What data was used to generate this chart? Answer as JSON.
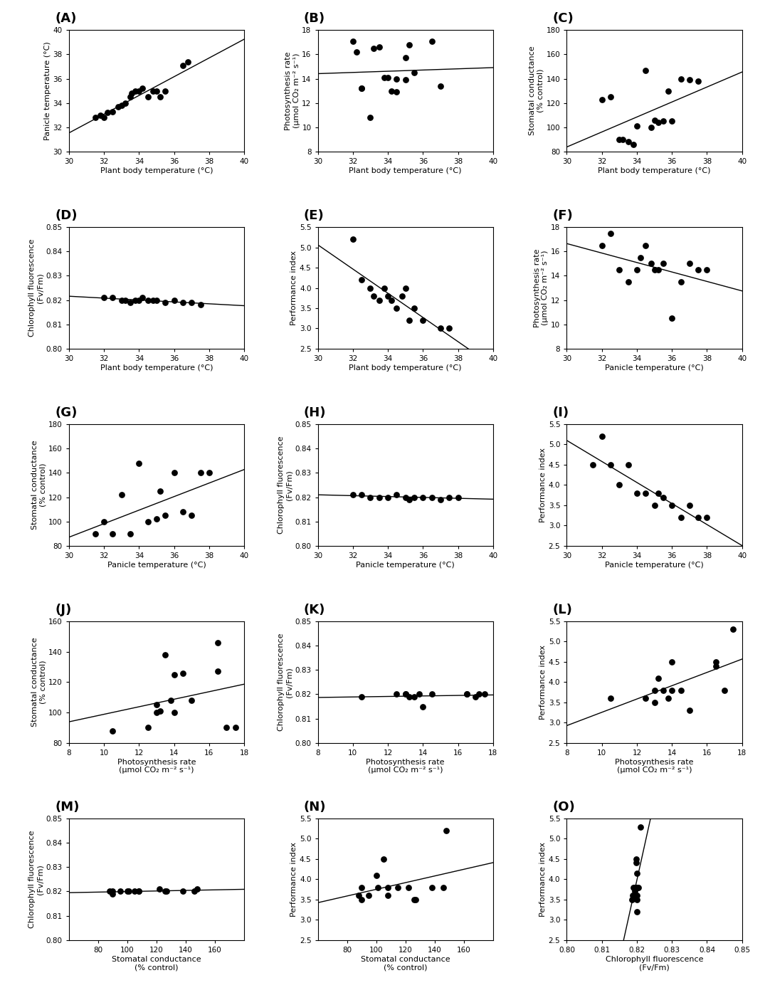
{
  "panels": [
    {
      "label": "(A)",
      "xlabel": "Plant body temperature (°C)",
      "ylabel": "Panicle temperature (°C)",
      "xlim": [
        30,
        40
      ],
      "ylim": [
        30,
        40
      ],
      "xticks": [
        30,
        32,
        34,
        36,
        38,
        40
      ],
      "yticks": [
        30,
        32,
        34,
        36,
        38,
        40
      ],
      "x": [
        31.5,
        31.8,
        32.0,
        32.2,
        32.5,
        32.8,
        33.0,
        33.2,
        33.5,
        33.6,
        33.8,
        34.0,
        34.2,
        34.5,
        34.8,
        35.0,
        35.2,
        35.5,
        36.5,
        36.8
      ],
      "y": [
        32.8,
        33.0,
        32.8,
        33.2,
        33.3,
        33.7,
        33.8,
        34.0,
        34.5,
        34.8,
        35.0,
        35.0,
        35.2,
        34.5,
        35.0,
        35.0,
        34.5,
        35.0,
        37.1,
        37.4
      ],
      "trend": true
    },
    {
      "label": "(B)",
      "xlabel": "Plant body temperature (°C)",
      "ylabel": "Photosynthesis rate\n(μmol CO₂ m⁻² s⁻¹)",
      "xlim": [
        30,
        40
      ],
      "ylim": [
        8,
        18
      ],
      "xticks": [
        30,
        32,
        34,
        36,
        38,
        40
      ],
      "yticks": [
        8,
        10,
        12,
        14,
        16,
        18
      ],
      "x": [
        32.0,
        32.2,
        32.5,
        32.5,
        33.0,
        33.2,
        33.5,
        33.8,
        34.0,
        34.2,
        34.5,
        34.5,
        35.0,
        35.0,
        35.2,
        35.5,
        36.5,
        37.0
      ],
      "y": [
        17.1,
        16.2,
        13.2,
        13.2,
        10.8,
        16.5,
        16.6,
        14.1,
        14.1,
        13.0,
        14.0,
        12.9,
        15.7,
        13.9,
        16.8,
        14.5,
        17.1,
        13.4
      ],
      "trend": true
    },
    {
      "label": "(C)",
      "xlabel": "Plant body temperature (°C)",
      "ylabel": "Stomatal conductance\n(% control)",
      "xlim": [
        30,
        40
      ],
      "ylim": [
        80,
        180
      ],
      "xticks": [
        30,
        32,
        34,
        36,
        38,
        40
      ],
      "yticks": [
        80,
        100,
        120,
        140,
        160,
        180
      ],
      "x": [
        32.0,
        32.5,
        33.0,
        33.2,
        33.5,
        33.8,
        34.0,
        34.5,
        34.8,
        35.0,
        35.2,
        35.5,
        35.8,
        36.0,
        36.5,
        37.0,
        37.5
      ],
      "y": [
        123,
        125,
        90,
        90,
        88,
        86,
        101,
        147,
        100,
        106,
        104,
        105,
        130,
        105,
        140,
        139,
        138
      ],
      "trend": true
    },
    {
      "label": "(D)",
      "xlabel": "Plant body temperature (°C)",
      "ylabel": "Chlorophyll fluorescence\n(Fv/Fm)",
      "xlim": [
        30,
        40
      ],
      "ylim": [
        0.8,
        0.85
      ],
      "xticks": [
        30,
        32,
        34,
        36,
        38,
        40
      ],
      "yticks": [
        0.8,
        0.81,
        0.82,
        0.83,
        0.84,
        0.85
      ],
      "x": [
        32.0,
        32.5,
        33.0,
        33.2,
        33.5,
        33.8,
        34.0,
        34.2,
        34.5,
        34.8,
        35.0,
        35.5,
        36.0,
        36.5,
        37.0,
        37.5
      ],
      "y": [
        0.821,
        0.821,
        0.82,
        0.82,
        0.819,
        0.82,
        0.82,
        0.821,
        0.82,
        0.82,
        0.82,
        0.819,
        0.82,
        0.819,
        0.819,
        0.818
      ],
      "trend": true
    },
    {
      "label": "(E)",
      "xlabel": "Plant body temperature (°C)",
      "ylabel": "Performance index",
      "xlim": [
        30,
        40
      ],
      "ylim": [
        2.5,
        5.5
      ],
      "xticks": [
        30,
        32,
        34,
        36,
        38,
        40
      ],
      "yticks": [
        2.5,
        3.0,
        3.5,
        4.0,
        4.5,
        5.0,
        5.5
      ],
      "x": [
        32.0,
        32.5,
        33.0,
        33.2,
        33.5,
        33.8,
        34.0,
        34.2,
        34.5,
        34.8,
        35.0,
        35.2,
        35.5,
        36.0,
        37.0,
        37.5
      ],
      "y": [
        5.2,
        4.2,
        4.0,
        3.8,
        3.7,
        4.0,
        3.8,
        3.7,
        3.5,
        3.8,
        4.0,
        3.2,
        3.5,
        3.2,
        3.0,
        3.0
      ],
      "trend": true
    },
    {
      "label": "(F)",
      "xlabel": "Panicle temperature (°C)",
      "ylabel": "Photosynthesis rate\n(μmol CO₂ m⁻² s⁻¹)",
      "xlim": [
        30,
        40
      ],
      "ylim": [
        8,
        18
      ],
      "xticks": [
        30,
        32,
        34,
        36,
        38,
        40
      ],
      "yticks": [
        8,
        10,
        12,
        14,
        16,
        18
      ],
      "x": [
        32.0,
        32.5,
        33.0,
        33.5,
        34.0,
        34.2,
        34.5,
        34.8,
        35.0,
        35.2,
        35.5,
        36.0,
        36.5,
        37.0,
        37.5,
        38.0
      ],
      "y": [
        16.5,
        17.5,
        14.5,
        13.5,
        14.5,
        15.5,
        16.5,
        15.0,
        14.5,
        14.5,
        15.0,
        10.5,
        13.5,
        15.0,
        14.5,
        14.5
      ],
      "trend": true
    },
    {
      "label": "(G)",
      "xlabel": "Panicle temperature (°C)",
      "ylabel": "Stomatal conductance\n(% control)",
      "xlim": [
        30,
        40
      ],
      "ylim": [
        80,
        180
      ],
      "xticks": [
        30,
        32,
        34,
        36,
        38,
        40
      ],
      "yticks": [
        80,
        100,
        120,
        140,
        160,
        180
      ],
      "x": [
        31.5,
        32.0,
        32.5,
        33.0,
        33.5,
        34.0,
        34.5,
        35.0,
        35.2,
        35.5,
        36.0,
        36.5,
        37.0,
        37.5,
        38.0
      ],
      "y": [
        90,
        100,
        90,
        122,
        90,
        148,
        100,
        102,
        125,
        105,
        140,
        108,
        105,
        140,
        140
      ],
      "trend": true
    },
    {
      "label": "(H)",
      "xlabel": "Panicle temperature (°C)",
      "ylabel": "Chlorophyll fluorescence\n(Fv/Fm)",
      "xlim": [
        30,
        40
      ],
      "ylim": [
        0.8,
        0.85
      ],
      "xticks": [
        30,
        32,
        34,
        36,
        38,
        40
      ],
      "yticks": [
        0.8,
        0.81,
        0.82,
        0.83,
        0.84,
        0.85
      ],
      "x": [
        32.0,
        32.5,
        33.0,
        33.5,
        34.0,
        34.5,
        35.0,
        35.2,
        35.5,
        36.0,
        36.5,
        37.0,
        37.5,
        38.0
      ],
      "y": [
        0.821,
        0.821,
        0.82,
        0.82,
        0.82,
        0.821,
        0.82,
        0.819,
        0.82,
        0.82,
        0.82,
        0.819,
        0.82,
        0.82
      ],
      "trend": true
    },
    {
      "label": "(I)",
      "xlabel": "Panicle temperature (°C)",
      "ylabel": "Performance index",
      "xlim": [
        30,
        40
      ],
      "ylim": [
        2.5,
        5.5
      ],
      "xticks": [
        30,
        32,
        34,
        36,
        38,
        40
      ],
      "yticks": [
        2.5,
        3.0,
        3.5,
        4.0,
        4.5,
        5.0,
        5.5
      ],
      "x": [
        31.5,
        32.0,
        32.5,
        33.0,
        33.5,
        34.0,
        34.5,
        35.0,
        35.2,
        35.5,
        36.0,
        36.5,
        37.0,
        37.5,
        38.0
      ],
      "y": [
        4.5,
        5.2,
        4.5,
        4.0,
        4.5,
        3.8,
        3.8,
        3.5,
        3.8,
        3.7,
        3.5,
        3.2,
        3.5,
        3.2,
        3.2
      ],
      "trend": true
    },
    {
      "label": "(J)",
      "xlabel": "Photosynthesis rate\n(μmol CO₂ m⁻² s⁻¹)",
      "ylabel": "Stomatal conductance\n(% control)",
      "xlim": [
        8,
        18
      ],
      "ylim": [
        80,
        160
      ],
      "xticks": [
        8,
        10,
        12,
        14,
        16,
        18
      ],
      "yticks": [
        80,
        100,
        120,
        140,
        160
      ],
      "x": [
        10.5,
        12.5,
        13.0,
        13.0,
        13.2,
        13.5,
        13.8,
        14.0,
        14.0,
        14.5,
        15.0,
        16.5,
        16.5,
        17.0,
        17.5
      ],
      "y": [
        88,
        90,
        100,
        105,
        101,
        138,
        108,
        100,
        125,
        126,
        108,
        127,
        146,
        90,
        90
      ],
      "trend": true
    },
    {
      "label": "(K)",
      "xlabel": "Photosynthesis rate\n(μmol CO₂ m⁻² s⁻¹)",
      "ylabel": "Chlorophyll fluorescence\n(Fv/Fm)",
      "xlim": [
        8,
        18
      ],
      "ylim": [
        0.8,
        0.85
      ],
      "xticks": [
        8,
        10,
        12,
        14,
        16,
        18
      ],
      "yticks": [
        0.8,
        0.81,
        0.82,
        0.83,
        0.84,
        0.85
      ],
      "x": [
        10.5,
        12.5,
        13.0,
        13.0,
        13.2,
        13.5,
        13.8,
        14.0,
        14.5,
        16.5,
        16.5,
        17.0,
        17.2,
        17.5
      ],
      "y": [
        0.819,
        0.82,
        0.82,
        0.82,
        0.819,
        0.819,
        0.82,
        0.815,
        0.82,
        0.82,
        0.82,
        0.819,
        0.82,
        0.82
      ],
      "trend": true
    },
    {
      "label": "(L)",
      "xlabel": "Photosynthesis rate\n(μmol CO₂ m⁻² s⁻¹)",
      "ylabel": "Performance index",
      "xlim": [
        8,
        18
      ],
      "ylim": [
        2.5,
        5.5
      ],
      "xticks": [
        8,
        10,
        12,
        14,
        16,
        18
      ],
      "yticks": [
        2.5,
        3.0,
        3.5,
        4.0,
        4.5,
        5.0,
        5.5
      ],
      "x": [
        10.5,
        12.5,
        13.0,
        13.0,
        13.2,
        13.5,
        13.8,
        14.0,
        14.0,
        14.5,
        15.0,
        16.5,
        16.5,
        17.0,
        17.5
      ],
      "y": [
        3.6,
        3.6,
        3.8,
        3.5,
        4.1,
        3.8,
        3.6,
        3.8,
        4.5,
        3.8,
        3.3,
        4.4,
        4.5,
        3.8,
        5.3
      ],
      "trend": true
    },
    {
      "label": "(M)",
      "xlabel": "Stomatal conductance\n(% control)",
      "ylabel": "Chlorophyll fluorescence\n(Fv/Fm)",
      "xlim": [
        60,
        180
      ],
      "ylim": [
        0.8,
        0.85
      ],
      "xticks": [
        80,
        100,
        120,
        140,
        160
      ],
      "yticks": [
        0.8,
        0.81,
        0.82,
        0.83,
        0.84,
        0.85
      ],
      "x": [
        88,
        90,
        90,
        95,
        100,
        101,
        105,
        108,
        108,
        122,
        126,
        127,
        138,
        146,
        148
      ],
      "y": [
        0.82,
        0.819,
        0.82,
        0.82,
        0.82,
        0.82,
        0.82,
        0.82,
        0.82,
        0.821,
        0.82,
        0.82,
        0.82,
        0.82,
        0.821
      ],
      "trend": true
    },
    {
      "label": "(N)",
      "xlabel": "Stomatal conductance\n(% control)",
      "ylabel": "Performance index",
      "xlim": [
        60,
        180
      ],
      "ylim": [
        2.5,
        5.5
      ],
      "xticks": [
        80,
        100,
        120,
        140,
        160
      ],
      "yticks": [
        2.5,
        3.0,
        3.5,
        4.0,
        4.5,
        5.0,
        5.5
      ],
      "x": [
        88,
        90,
        90,
        95,
        100,
        101,
        105,
        108,
        108,
        115,
        122,
        126,
        127,
        138,
        146,
        148
      ],
      "y": [
        3.6,
        3.8,
        3.5,
        3.6,
        4.1,
        3.8,
        4.5,
        3.8,
        3.6,
        3.8,
        3.8,
        3.5,
        3.5,
        3.8,
        3.8,
        5.2
      ],
      "trend": true
    },
    {
      "label": "(O)",
      "xlabel": "Chlorophyll fluorescence\n(Fv/Fm)",
      "ylabel": "Performance index",
      "xlim": [
        0.8,
        0.85
      ],
      "ylim": [
        2.5,
        5.5
      ],
      "xticks": [
        0.8,
        0.81,
        0.82,
        0.83,
        0.84,
        0.85
      ],
      "yticks": [
        2.5,
        3.0,
        3.5,
        4.0,
        4.5,
        5.0,
        5.5
      ],
      "x": [
        0.8185,
        0.8188,
        0.819,
        0.8192,
        0.8193,
        0.8195,
        0.8196,
        0.8197,
        0.8198,
        0.8199,
        0.82,
        0.82,
        0.82,
        0.82,
        0.8201,
        0.8202,
        0.8205,
        0.821
      ],
      "y": [
        3.5,
        3.6,
        3.8,
        3.8,
        3.6,
        3.7,
        3.8,
        3.8,
        4.5,
        4.4,
        3.5,
        3.8,
        4.15,
        3.2,
        3.6,
        3.8,
        3.8,
        5.28
      ],
      "trend": true
    }
  ],
  "marker_size": 40,
  "line_color": "black",
  "marker_color": "black",
  "label_fontsize": 8,
  "tick_fontsize": 7.5,
  "panel_label_fontsize": 13
}
